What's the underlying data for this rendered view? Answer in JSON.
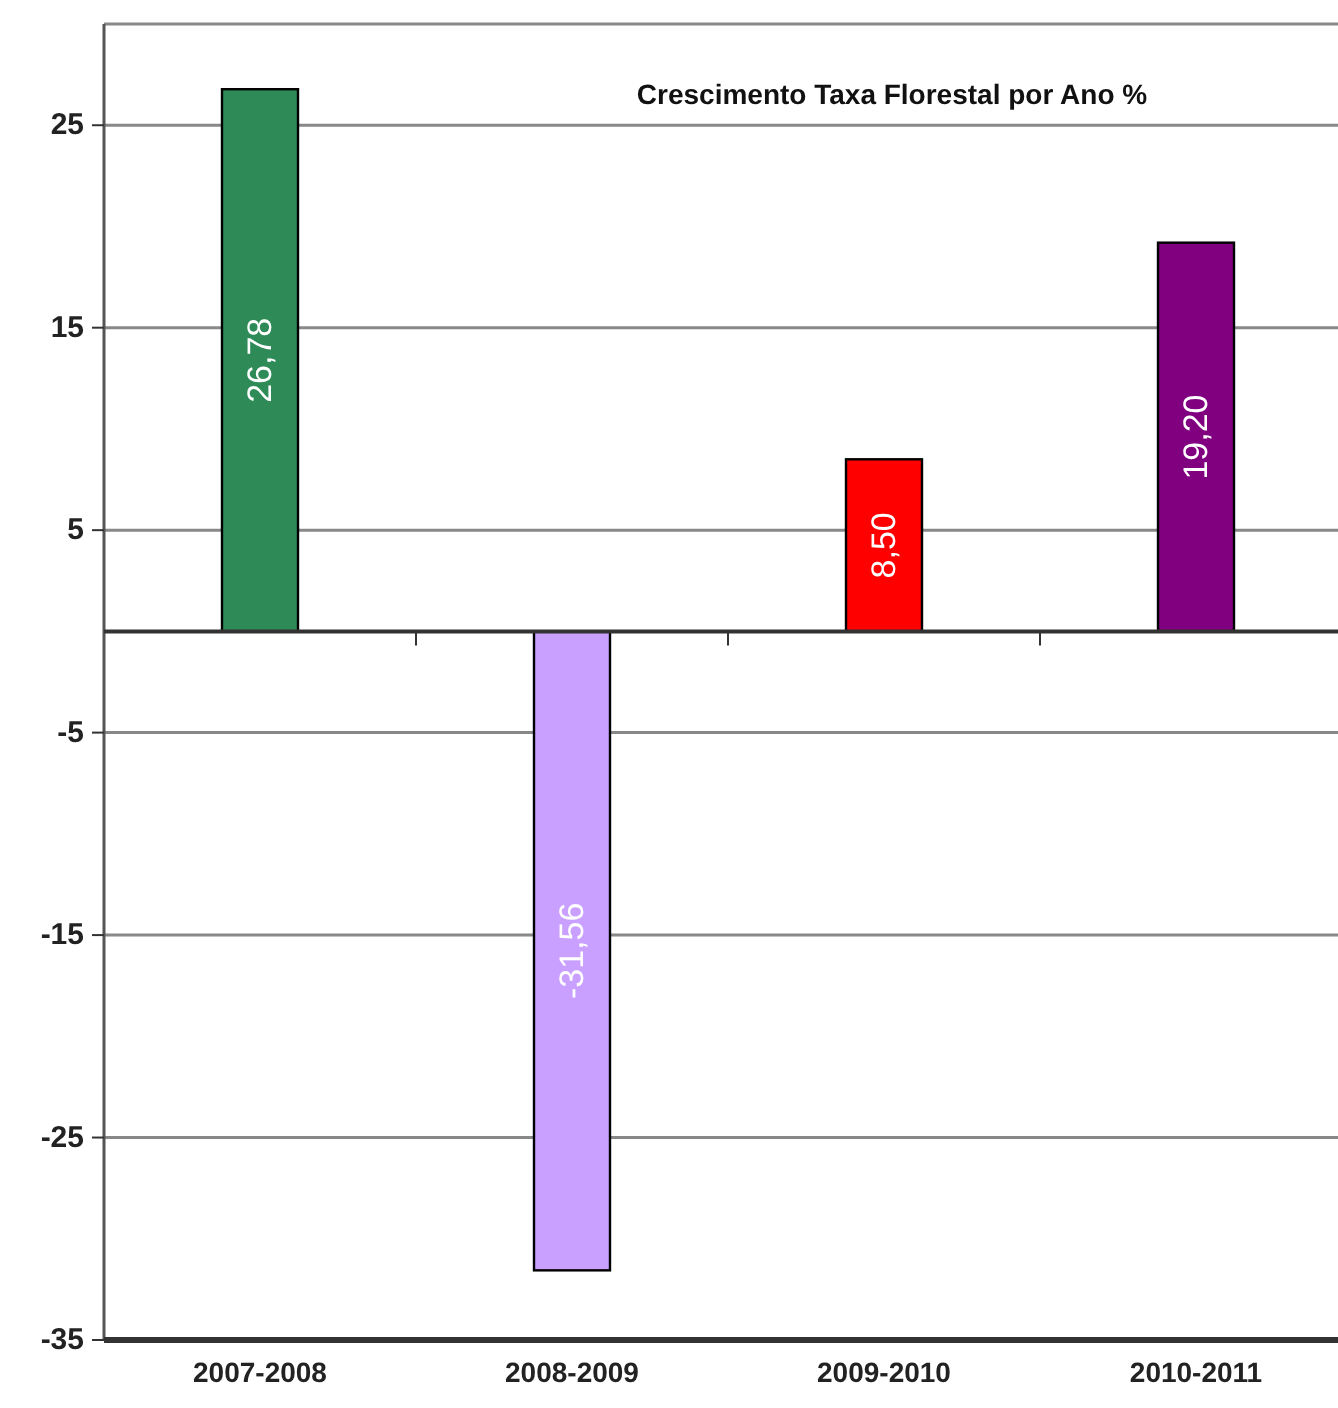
{
  "chart_data": {
    "type": "bar",
    "title": "Crescimento Taxa Florestal por Ano %",
    "categories": [
      "2007-2008",
      "2008-2009",
      "2009-2010",
      "2010-2011"
    ],
    "values": [
      26.78,
      -31.56,
      8.5,
      19.2
    ],
    "colors": [
      "#2e8b57",
      "#c9a0ff",
      "#ff0000",
      "#800080"
    ],
    "value_labels": [
      "26,78",
      "-31,56",
      "8,50",
      "19,20"
    ],
    "ylim": [
      -35,
      30
    ],
    "yticks": [
      25,
      15,
      5,
      -5,
      -15,
      -25,
      -35
    ],
    "grid": "y"
  }
}
